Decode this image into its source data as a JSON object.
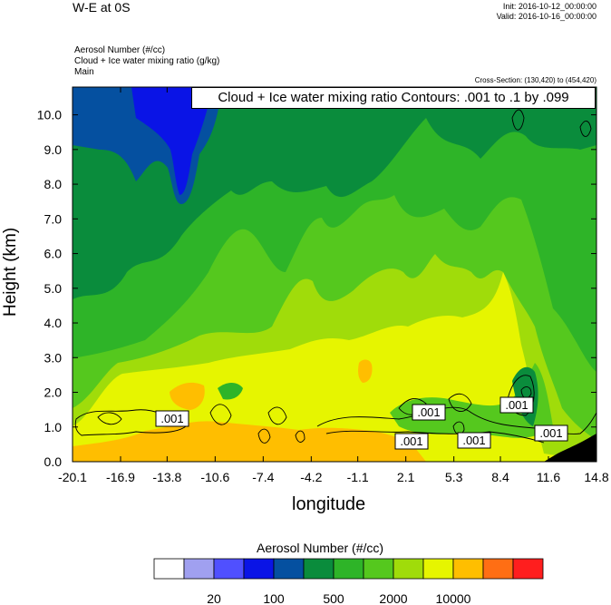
{
  "header": {
    "title": "W-E at 0S",
    "init": "Init: 2016-10-12_00:00:00",
    "valid": "Valid: 2016-10-16_00:00:00",
    "fields": [
      "Aerosol Number   (#/cc)",
      "Cloud + Ice water mixing ratio   (g/kg)",
      "Main"
    ],
    "cross_section": "Cross-Section: (130,420) to (454,420)"
  },
  "chart_data": {
    "type": "heatmap",
    "title": "W-E at 0S",
    "xlabel": "longitude",
    "ylabel": "Height (km)",
    "x_ticks": [
      "-20.1",
      "-16.9",
      "-13.8",
      "-10.6",
      "-7.4",
      "-4.2",
      "-1.1",
      "2.1",
      "5.3",
      "8.4",
      "11.6",
      "14.8"
    ],
    "y_ticks": [
      "0.0",
      "1.0",
      "2.0",
      "3.0",
      "4.0",
      "5.0",
      "6.0",
      "7.0",
      "8.0",
      "9.0",
      "10.0"
    ],
    "xlim": [
      -20.1,
      14.8
    ],
    "ylim": [
      0,
      10.8
    ],
    "contour_annotation": "Cloud + Ice water mixing ratio Contours: .001 to .1 by .099",
    "contour_labels": [
      ".001",
      ".001",
      ".001",
      ".001",
      ".001",
      ".001"
    ],
    "colorbar": {
      "title": "Aerosol Number  (#/cc)",
      "colors": [
        "#ffffff",
        "#a0a0f0",
        "#5050ff",
        "#0a14e6",
        "#0550a0",
        "#0a8c3c",
        "#2eb428",
        "#55c81e",
        "#a0dc0a",
        "#e6f500",
        "#ffbe00",
        "#ff6e14",
        "#ff1e1e"
      ],
      "labels": [
        "20",
        "100",
        "500",
        "2000",
        "10000"
      ]
    },
    "fields": [
      {
        "name": "Aerosol Number",
        "units": "#/cc",
        "style": "filled contours"
      },
      {
        "name": "Cloud + Ice water mixing ratio",
        "units": "g/kg",
        "style": "line contours"
      }
    ]
  }
}
